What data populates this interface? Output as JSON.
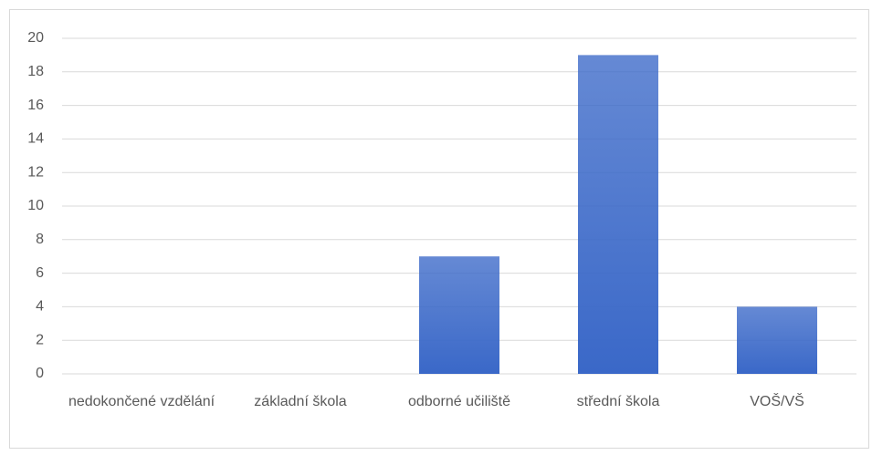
{
  "chart_data": {
    "type": "bar",
    "categories": [
      "nedokončené vzdělání",
      "základní škola",
      "odborné učiliště",
      "střední škola",
      "VOŠ/VŠ"
    ],
    "values": [
      0,
      0,
      7,
      19,
      4
    ],
    "color": "#3a68c8",
    "ylim": [
      0,
      20
    ],
    "yticks": [
      0,
      2,
      4,
      6,
      8,
      10,
      12,
      14,
      16,
      18,
      20
    ],
    "grid": true
  }
}
